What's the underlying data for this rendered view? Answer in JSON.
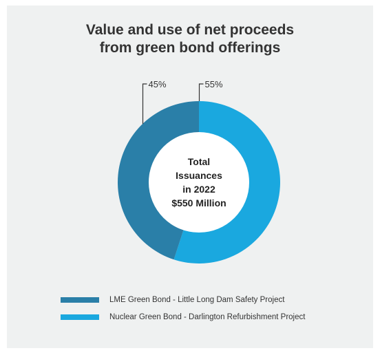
{
  "chart_data": {
    "type": "pie",
    "variant": "donut",
    "title": "Value and use of net proceeds from green bond offerings",
    "title_lines": [
      "Value and use of net proceeds",
      "from green bond offerings"
    ],
    "center_label": [
      "Total",
      "Issuances",
      "in 2022",
      "$550 Million"
    ],
    "series": [
      {
        "name": "Nuclear Green Bond - Darlington Refurbishment Project",
        "value": 55,
        "label": "55%",
        "color": "#1aa8df"
      },
      {
        "name": "LME Green Bond - Little Long Dam Safety Project",
        "value": 45,
        "label": "45%",
        "color": "#2a7fa8"
      }
    ],
    "legend": {
      "placement": "bottom",
      "order": [
        1,
        0
      ]
    }
  }
}
